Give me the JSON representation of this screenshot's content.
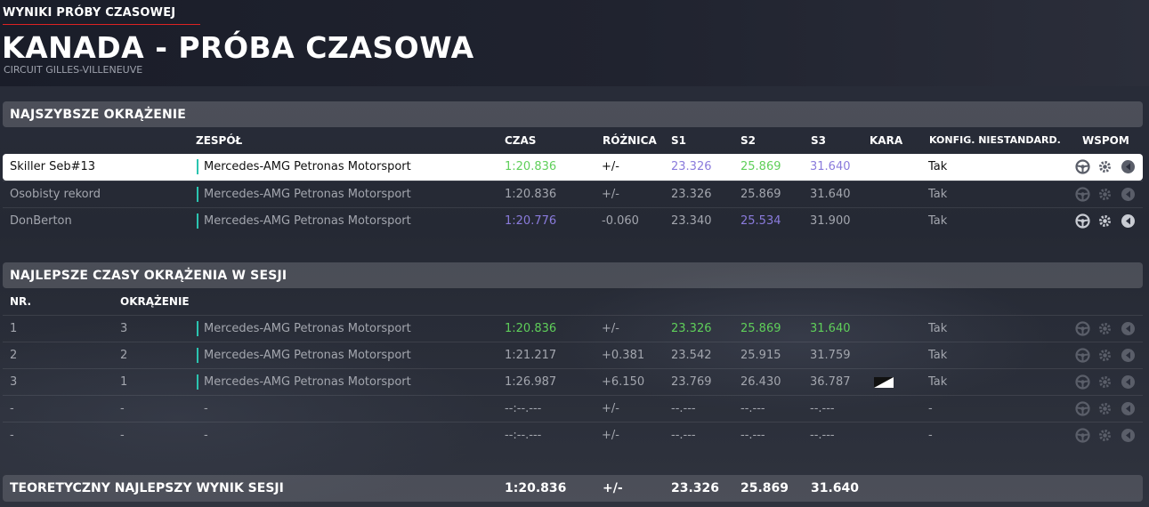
{
  "header": {
    "kicker": "WYNIKI PRÓBY CZASOWEJ",
    "title": "KANADA - PRÓBA CZASOWA",
    "circuit": "CIRCUIT GILLES-VILLENEUVE"
  },
  "colors": {
    "accent_red": "#dd2222",
    "team_teal": "#2bc4b0",
    "fastest_purple": "#8a7bdc",
    "personal_green": "#5fcf5a",
    "muted_text": "#a3a6ae"
  },
  "fastest": {
    "section_title": "NAJSZYBSZE OKRĄŻENIE",
    "columns": {
      "team": "ZESPÓŁ",
      "time": "CZAS",
      "diff": "RÓŻNICA",
      "s1": "S1",
      "s2": "S2",
      "s3": "S3",
      "penalty": "KARA",
      "config": "KONFIG. NIESTANDARD.",
      "assists": "WSPOM"
    },
    "rows": [
      {
        "name": "Skiller Seb#13",
        "team": "Mercedes-AMG Petronas Motorsport",
        "time": "1:20.836",
        "diff": "+/-",
        "s1": "23.326",
        "s2": "25.869",
        "s3": "31.640",
        "penalty": "",
        "config": "Tak"
      },
      {
        "name": "Osobisty rekord",
        "team": "Mercedes-AMG Petronas Motorsport",
        "time": "1:20.836",
        "diff": "+/-",
        "s1": "23.326",
        "s2": "25.869",
        "s3": "31.640",
        "penalty": "",
        "config": "Tak"
      },
      {
        "name": "DonBerton",
        "team": "Mercedes-AMG Petronas Motorsport",
        "time": "1:20.776",
        "diff": "-0.060",
        "s1": "23.340",
        "s2": "25.534",
        "s3": "31.900",
        "penalty": "",
        "config": "Tak"
      }
    ],
    "assist_icons": [
      "steering-wheel-icon",
      "gear-icon",
      "braking-icon"
    ]
  },
  "session": {
    "section_title": "NAJLEPSZE CZASY OKRĄŻENIA W SESJI",
    "columns": {
      "nr": "NR.",
      "lap": "OKRĄŻENIE"
    },
    "rows": [
      {
        "nr": "1",
        "lap": "3",
        "team": "Mercedes-AMG Petronas Motorsport",
        "time": "1:20.836",
        "diff": "+/-",
        "s1": "23.326",
        "s2": "25.869",
        "s3": "31.640",
        "penalty": "",
        "config": "Tak"
      },
      {
        "nr": "2",
        "lap": "2",
        "team": "Mercedes-AMG Petronas Motorsport",
        "time": "1:21.217",
        "diff": "+0.381",
        "s1": "23.542",
        "s2": "25.915",
        "s3": "31.759",
        "penalty": "",
        "config": "Tak"
      },
      {
        "nr": "3",
        "lap": "1",
        "team": "Mercedes-AMG Petronas Motorsport",
        "time": "1:26.987",
        "diff": "+6.150",
        "s1": "23.769",
        "s2": "26.430",
        "s3": "36.787",
        "penalty": "flag",
        "config": "Tak"
      },
      {
        "nr": "-",
        "lap": "-",
        "team": "-",
        "time": "--:--.---",
        "diff": "+/-",
        "s1": "--.---",
        "s2": "--.---",
        "s3": "--.---",
        "penalty": "",
        "config": "-"
      },
      {
        "nr": "-",
        "lap": "-",
        "team": "-",
        "time": "--:--.---",
        "diff": "+/-",
        "s1": "--.---",
        "s2": "--.---",
        "s3": "--.---",
        "penalty": "",
        "config": "-"
      }
    ]
  },
  "theoretical": {
    "label": "TEORETYCZNY NAJLEPSZY WYNIK SESJI",
    "time": "1:20.836",
    "diff": "+/-",
    "s1": "23.326",
    "s2": "25.869",
    "s3": "31.640"
  }
}
